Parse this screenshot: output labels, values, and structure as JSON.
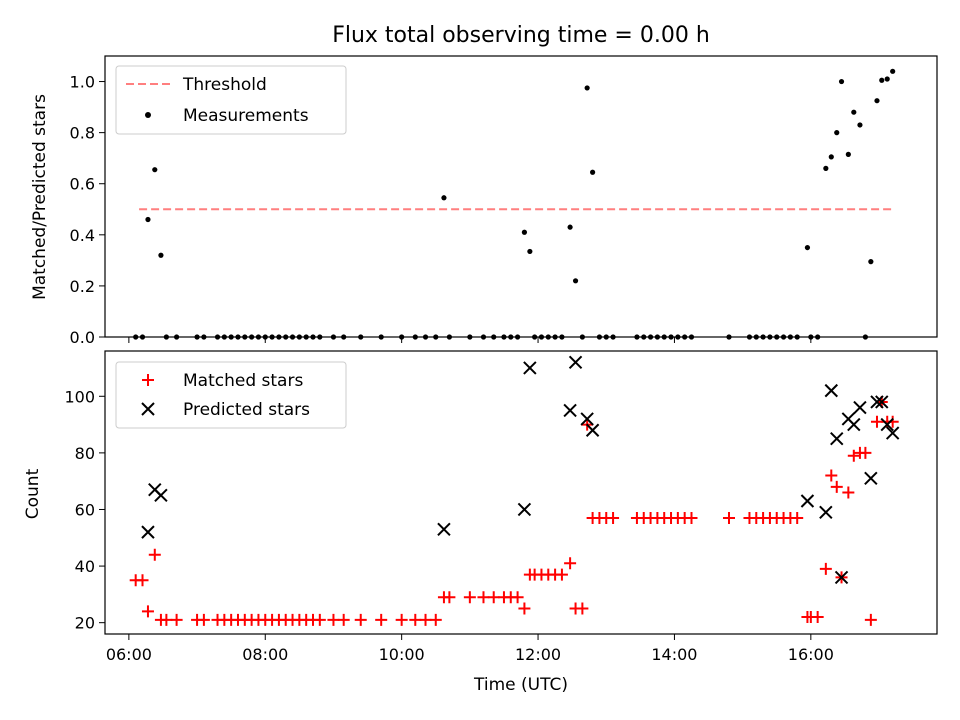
{
  "chart_data": [
    {
      "type": "scatter",
      "title": "Flux total observing time = 0.00 h",
      "xlabel": "",
      "ylabel": "Matched/Predicted stars",
      "xlim": [
        5.65,
        17.85
      ],
      "ylim": [
        0,
        1.1
      ],
      "yticks": [
        0.0,
        0.2,
        0.4,
        0.6,
        0.8,
        1.0
      ],
      "ytick_labels": [
        "0.0",
        "0.2",
        "0.4",
        "0.6",
        "0.8",
        "1.0"
      ],
      "legend_position": "top-left",
      "threshold": {
        "name": "Threshold",
        "value": 0.5,
        "x_range": [
          6.15,
          17.2
        ],
        "color": "#ff7f7f"
      },
      "measurements": {
        "name": "Measurements",
        "color": "#000000",
        "points": [
          [
            6.1,
            0
          ],
          [
            6.2,
            0
          ],
          [
            6.28,
            0.46
          ],
          [
            6.38,
            0.655
          ],
          [
            6.47,
            0.32
          ],
          [
            6.55,
            0
          ],
          [
            6.7,
            0
          ],
          [
            7.0,
            0
          ],
          [
            7.1,
            0
          ],
          [
            7.3,
            0
          ],
          [
            7.4,
            0
          ],
          [
            7.5,
            0
          ],
          [
            7.6,
            0
          ],
          [
            7.7,
            0
          ],
          [
            7.8,
            0
          ],
          [
            7.9,
            0
          ],
          [
            8.0,
            0
          ],
          [
            8.1,
            0
          ],
          [
            8.2,
            0
          ],
          [
            8.3,
            0
          ],
          [
            8.4,
            0
          ],
          [
            8.5,
            0
          ],
          [
            8.6,
            0
          ],
          [
            8.7,
            0
          ],
          [
            8.8,
            0
          ],
          [
            9.0,
            0
          ],
          [
            9.15,
            0
          ],
          [
            9.4,
            0
          ],
          [
            9.7,
            0
          ],
          [
            10.0,
            0
          ],
          [
            10.2,
            0
          ],
          [
            10.35,
            0
          ],
          [
            10.5,
            0
          ],
          [
            10.62,
            0.545
          ],
          [
            10.7,
            0
          ],
          [
            11.0,
            0
          ],
          [
            11.2,
            0
          ],
          [
            11.35,
            0
          ],
          [
            11.5,
            0
          ],
          [
            11.6,
            0
          ],
          [
            11.7,
            0
          ],
          [
            11.8,
            0.41
          ],
          [
            11.88,
            0.335
          ],
          [
            11.95,
            0
          ],
          [
            12.05,
            0
          ],
          [
            12.15,
            0
          ],
          [
            12.25,
            0
          ],
          [
            12.35,
            0
          ],
          [
            12.47,
            0.43
          ],
          [
            12.55,
            0.22
          ],
          [
            12.65,
            0
          ],
          [
            12.72,
            0.975
          ],
          [
            12.8,
            0.645
          ],
          [
            12.9,
            0
          ],
          [
            13.0,
            0
          ],
          [
            13.1,
            0
          ],
          [
            13.45,
            0
          ],
          [
            13.55,
            0
          ],
          [
            13.65,
            0
          ],
          [
            13.75,
            0
          ],
          [
            13.85,
            0
          ],
          [
            13.95,
            0
          ],
          [
            14.05,
            0
          ],
          [
            14.15,
            0
          ],
          [
            14.25,
            0
          ],
          [
            14.8,
            0
          ],
          [
            15.1,
            0
          ],
          [
            15.2,
            0
          ],
          [
            15.3,
            0
          ],
          [
            15.4,
            0
          ],
          [
            15.5,
            0
          ],
          [
            15.6,
            0
          ],
          [
            15.7,
            0
          ],
          [
            15.8,
            0
          ],
          [
            15.95,
            0.35
          ],
          [
            16.0,
            0
          ],
          [
            16.1,
            0
          ],
          [
            16.22,
            0.66
          ],
          [
            16.3,
            0.705
          ],
          [
            16.38,
            0.8
          ],
          [
            16.45,
            1.0
          ],
          [
            16.55,
            0.715
          ],
          [
            16.63,
            0.88
          ],
          [
            16.72,
            0.83
          ],
          [
            16.8,
            0
          ],
          [
            16.88,
            0.295
          ],
          [
            16.97,
            0.925
          ],
          [
            17.04,
            1.005
          ],
          [
            17.12,
            1.01
          ],
          [
            17.2,
            1.04
          ]
        ]
      }
    },
    {
      "type": "scatter",
      "title": "",
      "xlabel": "Time (UTC)",
      "ylabel": "Count",
      "xlim": [
        5.65,
        17.85
      ],
      "ylim": [
        16,
        116
      ],
      "xticks": [
        6,
        8,
        10,
        12,
        14,
        16
      ],
      "xtick_labels": [
        "06:00",
        "08:00",
        "10:00",
        "12:00",
        "14:00",
        "16:00"
      ],
      "yticks": [
        20,
        40,
        60,
        80,
        100
      ],
      "ytick_labels": [
        "20",
        "40",
        "60",
        "80",
        "100"
      ],
      "legend_position": "top-left",
      "series": [
        {
          "name": "Matched stars",
          "marker": "+",
          "color": "#ff0000",
          "points": [
            [
              6.1,
              35
            ],
            [
              6.2,
              35
            ],
            [
              6.28,
              24
            ],
            [
              6.38,
              44
            ],
            [
              6.47,
              21
            ],
            [
              6.55,
              21
            ],
            [
              6.7,
              21
            ],
            [
              7.0,
              21
            ],
            [
              7.1,
              21
            ],
            [
              7.3,
              21
            ],
            [
              7.4,
              21
            ],
            [
              7.5,
              21
            ],
            [
              7.6,
              21
            ],
            [
              7.7,
              21
            ],
            [
              7.8,
              21
            ],
            [
              7.9,
              21
            ],
            [
              8.0,
              21
            ],
            [
              8.1,
              21
            ],
            [
              8.2,
              21
            ],
            [
              8.3,
              21
            ],
            [
              8.4,
              21
            ],
            [
              8.5,
              21
            ],
            [
              8.6,
              21
            ],
            [
              8.7,
              21
            ],
            [
              8.8,
              21
            ],
            [
              9.0,
              21
            ],
            [
              9.15,
              21
            ],
            [
              9.4,
              21
            ],
            [
              9.7,
              21
            ],
            [
              10.0,
              21
            ],
            [
              10.2,
              21
            ],
            [
              10.35,
              21
            ],
            [
              10.5,
              21
            ],
            [
              10.62,
              29
            ],
            [
              10.7,
              29
            ],
            [
              11.0,
              29
            ],
            [
              11.2,
              29
            ],
            [
              11.35,
              29
            ],
            [
              11.5,
              29
            ],
            [
              11.6,
              29
            ],
            [
              11.7,
              29
            ],
            [
              11.8,
              25
            ],
            [
              11.88,
              37
            ],
            [
              11.95,
              37
            ],
            [
              12.05,
              37
            ],
            [
              12.15,
              37
            ],
            [
              12.25,
              37
            ],
            [
              12.35,
              37
            ],
            [
              12.47,
              41
            ],
            [
              12.55,
              25
            ],
            [
              12.65,
              25
            ],
            [
              12.72,
              90
            ],
            [
              12.8,
              57
            ],
            [
              12.9,
              57
            ],
            [
              13.0,
              57
            ],
            [
              13.1,
              57
            ],
            [
              13.45,
              57
            ],
            [
              13.55,
              57
            ],
            [
              13.65,
              57
            ],
            [
              13.75,
              57
            ],
            [
              13.85,
              57
            ],
            [
              13.95,
              57
            ],
            [
              14.05,
              57
            ],
            [
              14.15,
              57
            ],
            [
              14.25,
              57
            ],
            [
              14.8,
              57
            ],
            [
              15.1,
              57
            ],
            [
              15.2,
              57
            ],
            [
              15.3,
              57
            ],
            [
              15.4,
              57
            ],
            [
              15.5,
              57
            ],
            [
              15.6,
              57
            ],
            [
              15.7,
              57
            ],
            [
              15.8,
              57
            ],
            [
              15.95,
              22
            ],
            [
              16.0,
              22
            ],
            [
              16.1,
              22
            ],
            [
              16.22,
              39
            ],
            [
              16.3,
              72
            ],
            [
              16.38,
              68
            ],
            [
              16.45,
              36
            ],
            [
              16.55,
              66
            ],
            [
              16.63,
              79
            ],
            [
              16.72,
              80
            ],
            [
              16.8,
              80
            ],
            [
              16.88,
              21
            ],
            [
              16.97,
              91
            ],
            [
              17.04,
              98
            ],
            [
              17.12,
              91
            ],
            [
              17.2,
              91
            ]
          ]
        },
        {
          "name": "Predicted stars",
          "marker": "x",
          "color": "#000000",
          "points": [
            [
              6.28,
              52
            ],
            [
              6.38,
              67
            ],
            [
              6.47,
              65
            ],
            [
              10.62,
              53
            ],
            [
              11.8,
              60
            ],
            [
              11.88,
              110
            ],
            [
              12.47,
              95
            ],
            [
              12.55,
              112
            ],
            [
              12.72,
              92
            ],
            [
              12.8,
              88
            ],
            [
              15.95,
              63
            ],
            [
              16.22,
              59
            ],
            [
              16.3,
              102
            ],
            [
              16.38,
              85
            ],
            [
              16.45,
              36
            ],
            [
              16.55,
              92
            ],
            [
              16.63,
              90
            ],
            [
              16.72,
              96
            ],
            [
              16.88,
              71
            ],
            [
              16.97,
              98
            ],
            [
              17.04,
              98
            ],
            [
              17.12,
              90
            ],
            [
              17.2,
              87
            ]
          ]
        }
      ]
    }
  ]
}
